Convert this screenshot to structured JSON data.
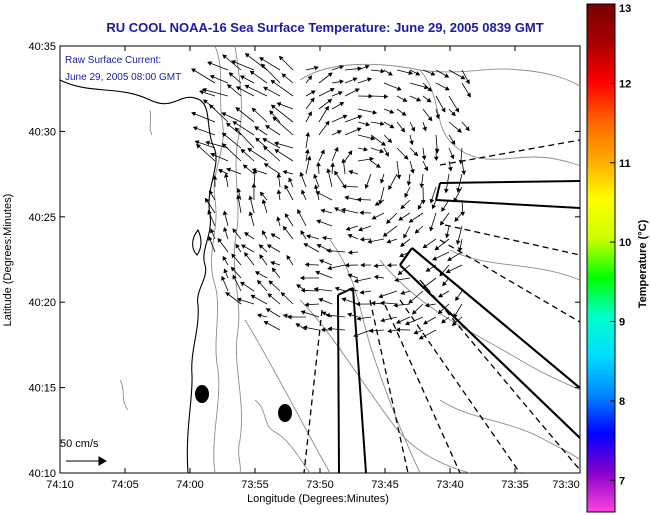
{
  "chart_data": {
    "type": "vector-field",
    "title": "RU COOL  NOAA-16  Sea Surface Temperature:  June 29, 2005 0839 GMT",
    "xlabel": "Longitude (Degrees:Minutes)",
    "ylabel": "Latitude (Degrees:Minutes)",
    "x_ticks": [
      "74:10",
      "74:05",
      "74:00",
      "73:55",
      "73:50",
      "73:45",
      "73:40",
      "73:35",
      "73:30"
    ],
    "y_ticks": [
      "40:10",
      "40:15",
      "40:20",
      "40:25",
      "40:30",
      "40:35"
    ],
    "xlim_minutes_west": [
      4450,
      4410
    ],
    "ylim_minutes_north": [
      2410,
      2435
    ],
    "inset_text": [
      "Raw Surface Current:",
      "June 29, 2005 08:00 GMT"
    ],
    "scale_label": "50 cm/s",
    "colorbar": {
      "label": "Temperature (°C)",
      "ticks": [
        "7",
        "8",
        "9",
        "10",
        "11",
        "12",
        "13"
      ],
      "range": [
        6.6,
        13
      ],
      "colors": [
        "#ff44dd",
        "#8800cc",
        "#0000ff",
        "#0088ff",
        "#00ddff",
        "#00ffcc",
        "#00ff00",
        "#ccff00",
        "#ffff00",
        "#ffaa00",
        "#ff6600",
        "#ff0000",
        "#aa0000",
        "#770000"
      ]
    },
    "markers": [
      {
        "lon": "74:00",
        "lat": "40:14",
        "label": ""
      },
      {
        "lon": "73:53",
        "lat": "40:13",
        "label": ""
      }
    ]
  }
}
